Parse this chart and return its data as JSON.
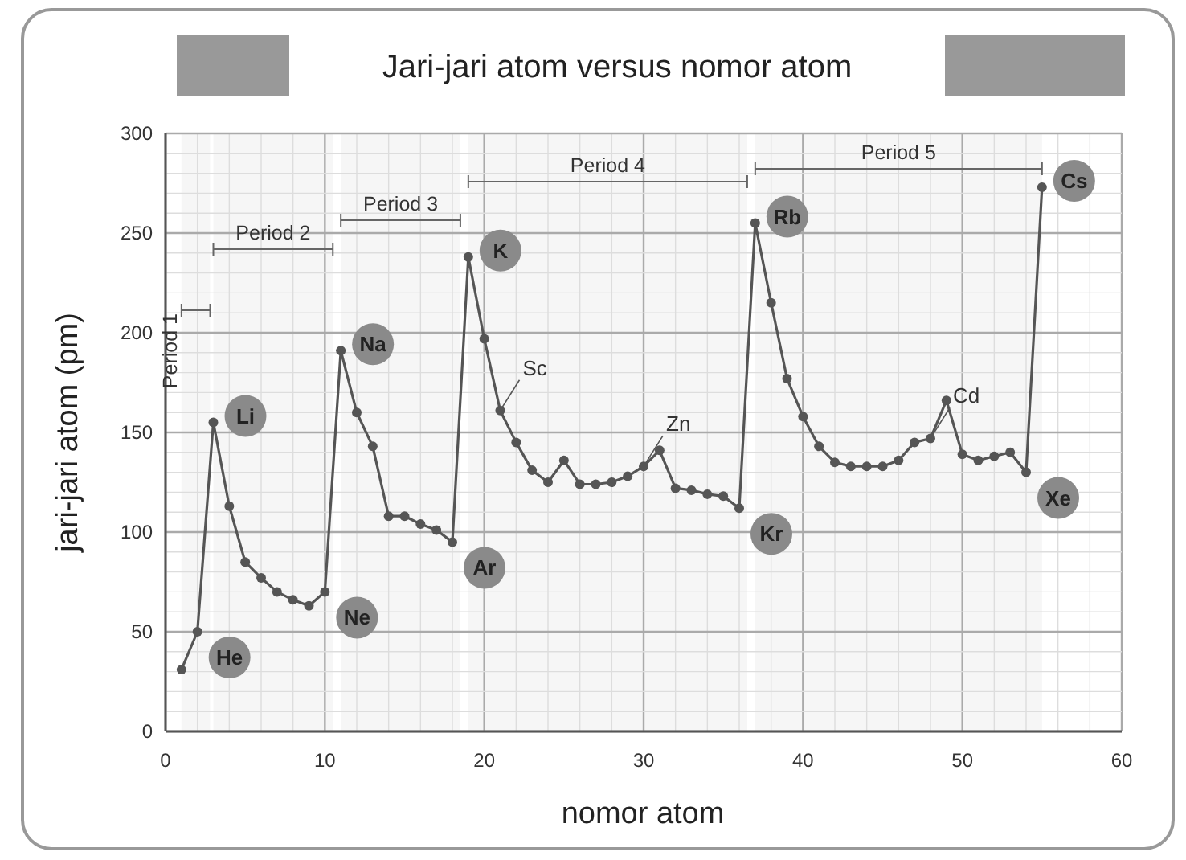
{
  "chart_data": {
    "type": "line",
    "title": "Jari-jari atom versus nomor atom",
    "xlabel": "nomor atom",
    "ylabel": "jari-jari atom (pm)",
    "x": [
      1,
      2,
      3,
      4,
      5,
      6,
      7,
      8,
      9,
      10,
      11,
      12,
      13,
      14,
      15,
      16,
      17,
      18,
      19,
      20,
      21,
      22,
      23,
      24,
      25,
      26,
      27,
      28,
      29,
      30,
      31,
      32,
      33,
      34,
      35,
      36,
      37,
      38,
      39,
      40,
      41,
      42,
      43,
      44,
      45,
      46,
      47,
      48,
      49,
      50,
      51,
      52,
      53,
      54,
      55
    ],
    "series": [
      {
        "color": "#555555",
        "values": [
          31,
          50,
          155,
          113,
          85,
          77,
          70,
          66,
          63,
          70,
          191,
          160,
          143,
          108,
          108,
          104,
          101,
          95,
          238,
          197,
          161,
          145,
          131,
          125,
          136,
          124,
          124,
          125,
          128,
          133,
          141,
          122,
          121,
          119,
          118,
          112,
          255,
          215,
          177,
          158,
          143,
          135,
          133,
          133,
          133,
          136,
          145,
          147,
          166,
          139,
          136,
          138,
          140,
          130,
          273
        ]
      }
    ],
    "xlim": [
      0,
      60
    ],
    "xticks": [
      0,
      10,
      20,
      30,
      40,
      50,
      60
    ],
    "ylim": [
      0,
      300
    ],
    "yticks": [
      0,
      50,
      100,
      150,
      200,
      250,
      300
    ],
    "grid": true,
    "marker": "circle",
    "line_style": "solid",
    "annotations": [
      {
        "text": "He",
        "x": 2,
        "y": 50
      },
      {
        "text": "Li",
        "x": 3,
        "y": 155
      },
      {
        "text": "Ne",
        "x": 10,
        "y": 70
      },
      {
        "text": "Na",
        "x": 11,
        "y": 191
      },
      {
        "text": "Ar",
        "x": 18,
        "y": 95
      },
      {
        "text": "K",
        "x": 19,
        "y": 238
      },
      {
        "text": "Kr",
        "x": 36,
        "y": 112
      },
      {
        "text": "Rb",
        "x": 37,
        "y": 255
      },
      {
        "text": "Xe",
        "x": 54,
        "y": 130
      },
      {
        "text": "Cs",
        "x": 55,
        "y": 273
      },
      {
        "text": "Sc",
        "x": 21,
        "y": 161
      },
      {
        "text": "Zn",
        "x": 30,
        "y": 133
      },
      {
        "text": "Cd",
        "x": 48,
        "y": 147
      }
    ],
    "bands": [
      {
        "axis": "x",
        "from": 1,
        "to": 2.8,
        "label": "Period 1"
      },
      {
        "axis": "x",
        "from": 3,
        "to": 10.5,
        "label": "Period 2"
      },
      {
        "axis": "x",
        "from": 11,
        "to": 18.5,
        "label": "Period 3"
      },
      {
        "axis": "x",
        "from": 19,
        "to": 36.5,
        "label": "Period 4"
      },
      {
        "axis": "x",
        "from": 37,
        "to": 55,
        "label": "Period 5"
      }
    ]
  }
}
